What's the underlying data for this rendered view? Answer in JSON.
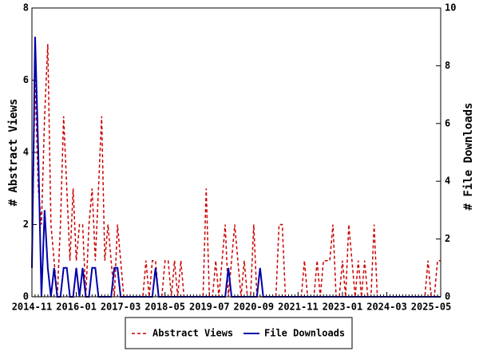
{
  "chart_data": {
    "type": "line",
    "categories": [
      "2014-11",
      null,
      null,
      null,
      null,
      null,
      null,
      null,
      null,
      null,
      null,
      null,
      null,
      null,
      "2016-01",
      null,
      null,
      null,
      null,
      null,
      null,
      null,
      null,
      null,
      null,
      null,
      null,
      null,
      "2017-03",
      null,
      null,
      null,
      null,
      null,
      null,
      null,
      null,
      null,
      null,
      null,
      null,
      null,
      "2018-05",
      null,
      null,
      null,
      null,
      null,
      null,
      null,
      null,
      null,
      null,
      null,
      null,
      null,
      "2019-07",
      null,
      null,
      null,
      null,
      null,
      null,
      null,
      null,
      null,
      null,
      null,
      null,
      null,
      "2020-09",
      null,
      null,
      null,
      null,
      null,
      null,
      null,
      null,
      null,
      null,
      null,
      null,
      null,
      "2021-11",
      null,
      null,
      null,
      null,
      null,
      null,
      null,
      null,
      null,
      null,
      null,
      null,
      null,
      "2023-01",
      null,
      null,
      null,
      null,
      null,
      null,
      null,
      null,
      null,
      null,
      null,
      null,
      null,
      "2024-03",
      null,
      null,
      null,
      null,
      null,
      null,
      null,
      null,
      null,
      null,
      null,
      null,
      null,
      "2025-05",
      null,
      null,
      null
    ],
    "ylabel": "# Abstract Views",
    "y2label": "# File Downloads",
    "ylim": [
      0,
      8
    ],
    "yticks": [
      0,
      2,
      4,
      6,
      8
    ],
    "y2lim": [
      0,
      10
    ],
    "y2ticks": [
      0,
      2,
      4,
      6,
      8,
      10
    ],
    "legend": "bottom",
    "series": [
      {
        "name": "Abstract Views",
        "color": "#cc0000",
        "dash": true,
        "values": [
          1,
          6,
          3,
          2,
          5,
          7,
          2,
          1,
          0,
          2,
          5,
          3,
          1,
          3,
          1,
          2,
          2,
          0,
          2,
          3,
          1,
          3,
          5,
          1,
          2,
          1,
          0,
          2,
          1,
          0,
          0,
          0,
          0,
          0,
          0,
          0,
          1,
          0,
          1,
          1,
          0,
          0,
          1,
          1,
          0,
          1,
          0,
          1,
          0,
          0,
          0,
          0,
          0,
          0,
          0,
          3,
          0,
          0,
          1,
          0,
          1,
          2,
          0,
          1,
          2,
          1,
          0,
          1,
          0,
          0,
          2,
          0,
          0,
          0,
          0,
          0,
          0,
          0,
          2,
          2,
          0,
          0,
          0,
          0,
          0,
          0,
          1,
          0,
          0,
          0,
          1,
          0,
          1,
          1,
          1,
          2,
          0,
          0,
          1,
          0,
          2,
          1,
          0,
          1,
          0,
          1,
          0,
          0,
          2,
          0,
          0,
          0,
          0,
          0,
          0,
          0,
          0,
          0,
          0,
          0,
          0,
          0,
          0,
          0,
          0,
          1,
          0,
          0,
          1,
          1
        ]
      },
      {
        "name": "File Downloads",
        "color": "#0000aa",
        "dash": false,
        "axis": "y2",
        "values": [
          1,
          9,
          5,
          0,
          3,
          1,
          0,
          1,
          0,
          0,
          1,
          1,
          0,
          0,
          1,
          0,
          1,
          0,
          0,
          1,
          1,
          0,
          0,
          0,
          0,
          0,
          1,
          1,
          0,
          0,
          0,
          0,
          0,
          0,
          0,
          0,
          0,
          0,
          0,
          1,
          0,
          0,
          0,
          0,
          0,
          0,
          0,
          0,
          0,
          0,
          0,
          0,
          0,
          0,
          0,
          0,
          0,
          0,
          0,
          0,
          0,
          0,
          1,
          0,
          0,
          0,
          0,
          0,
          0,
          0,
          0,
          0,
          1,
          0,
          0,
          0,
          0,
          0,
          0,
          0,
          0,
          0,
          0,
          0,
          0,
          0,
          0,
          0,
          0,
          0,
          0,
          0,
          0,
          0,
          0,
          0,
          0,
          0,
          0,
          0,
          0,
          0,
          0,
          0,
          0,
          0,
          0,
          0,
          0,
          0,
          0,
          0,
          0,
          0,
          0,
          0,
          0,
          0,
          0,
          0,
          0,
          0,
          0,
          0,
          0,
          0,
          0,
          0,
          0,
          0
        ]
      }
    ]
  }
}
